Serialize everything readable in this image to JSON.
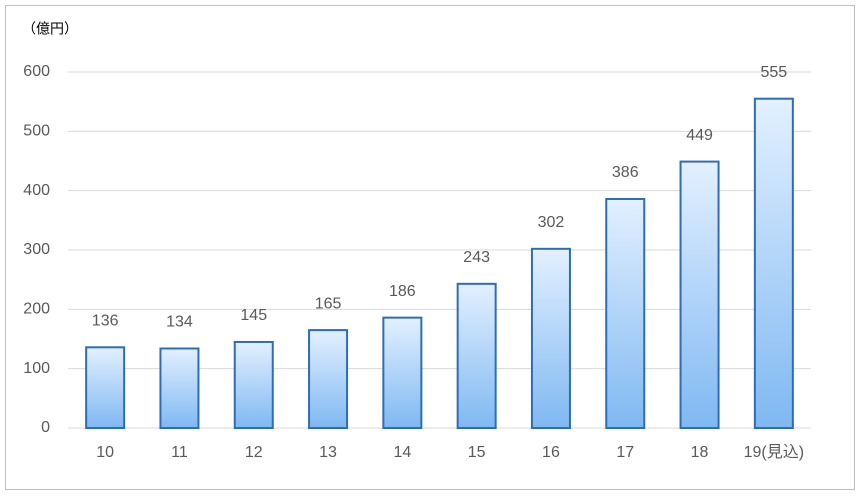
{
  "chart_data": {
    "type": "bar",
    "y_unit": "（億円）",
    "categories": [
      "10",
      "11",
      "12",
      "13",
      "14",
      "15",
      "16",
      "17",
      "18",
      "19(見込)"
    ],
    "values": [
      136,
      134,
      145,
      165,
      186,
      243,
      302,
      386,
      449,
      555
    ],
    "color": "#2e6db4",
    "ylim": [
      0,
      600
    ],
    "yticks": [
      0,
      100,
      200,
      300,
      400,
      500,
      600
    ],
    "grid": true
  }
}
